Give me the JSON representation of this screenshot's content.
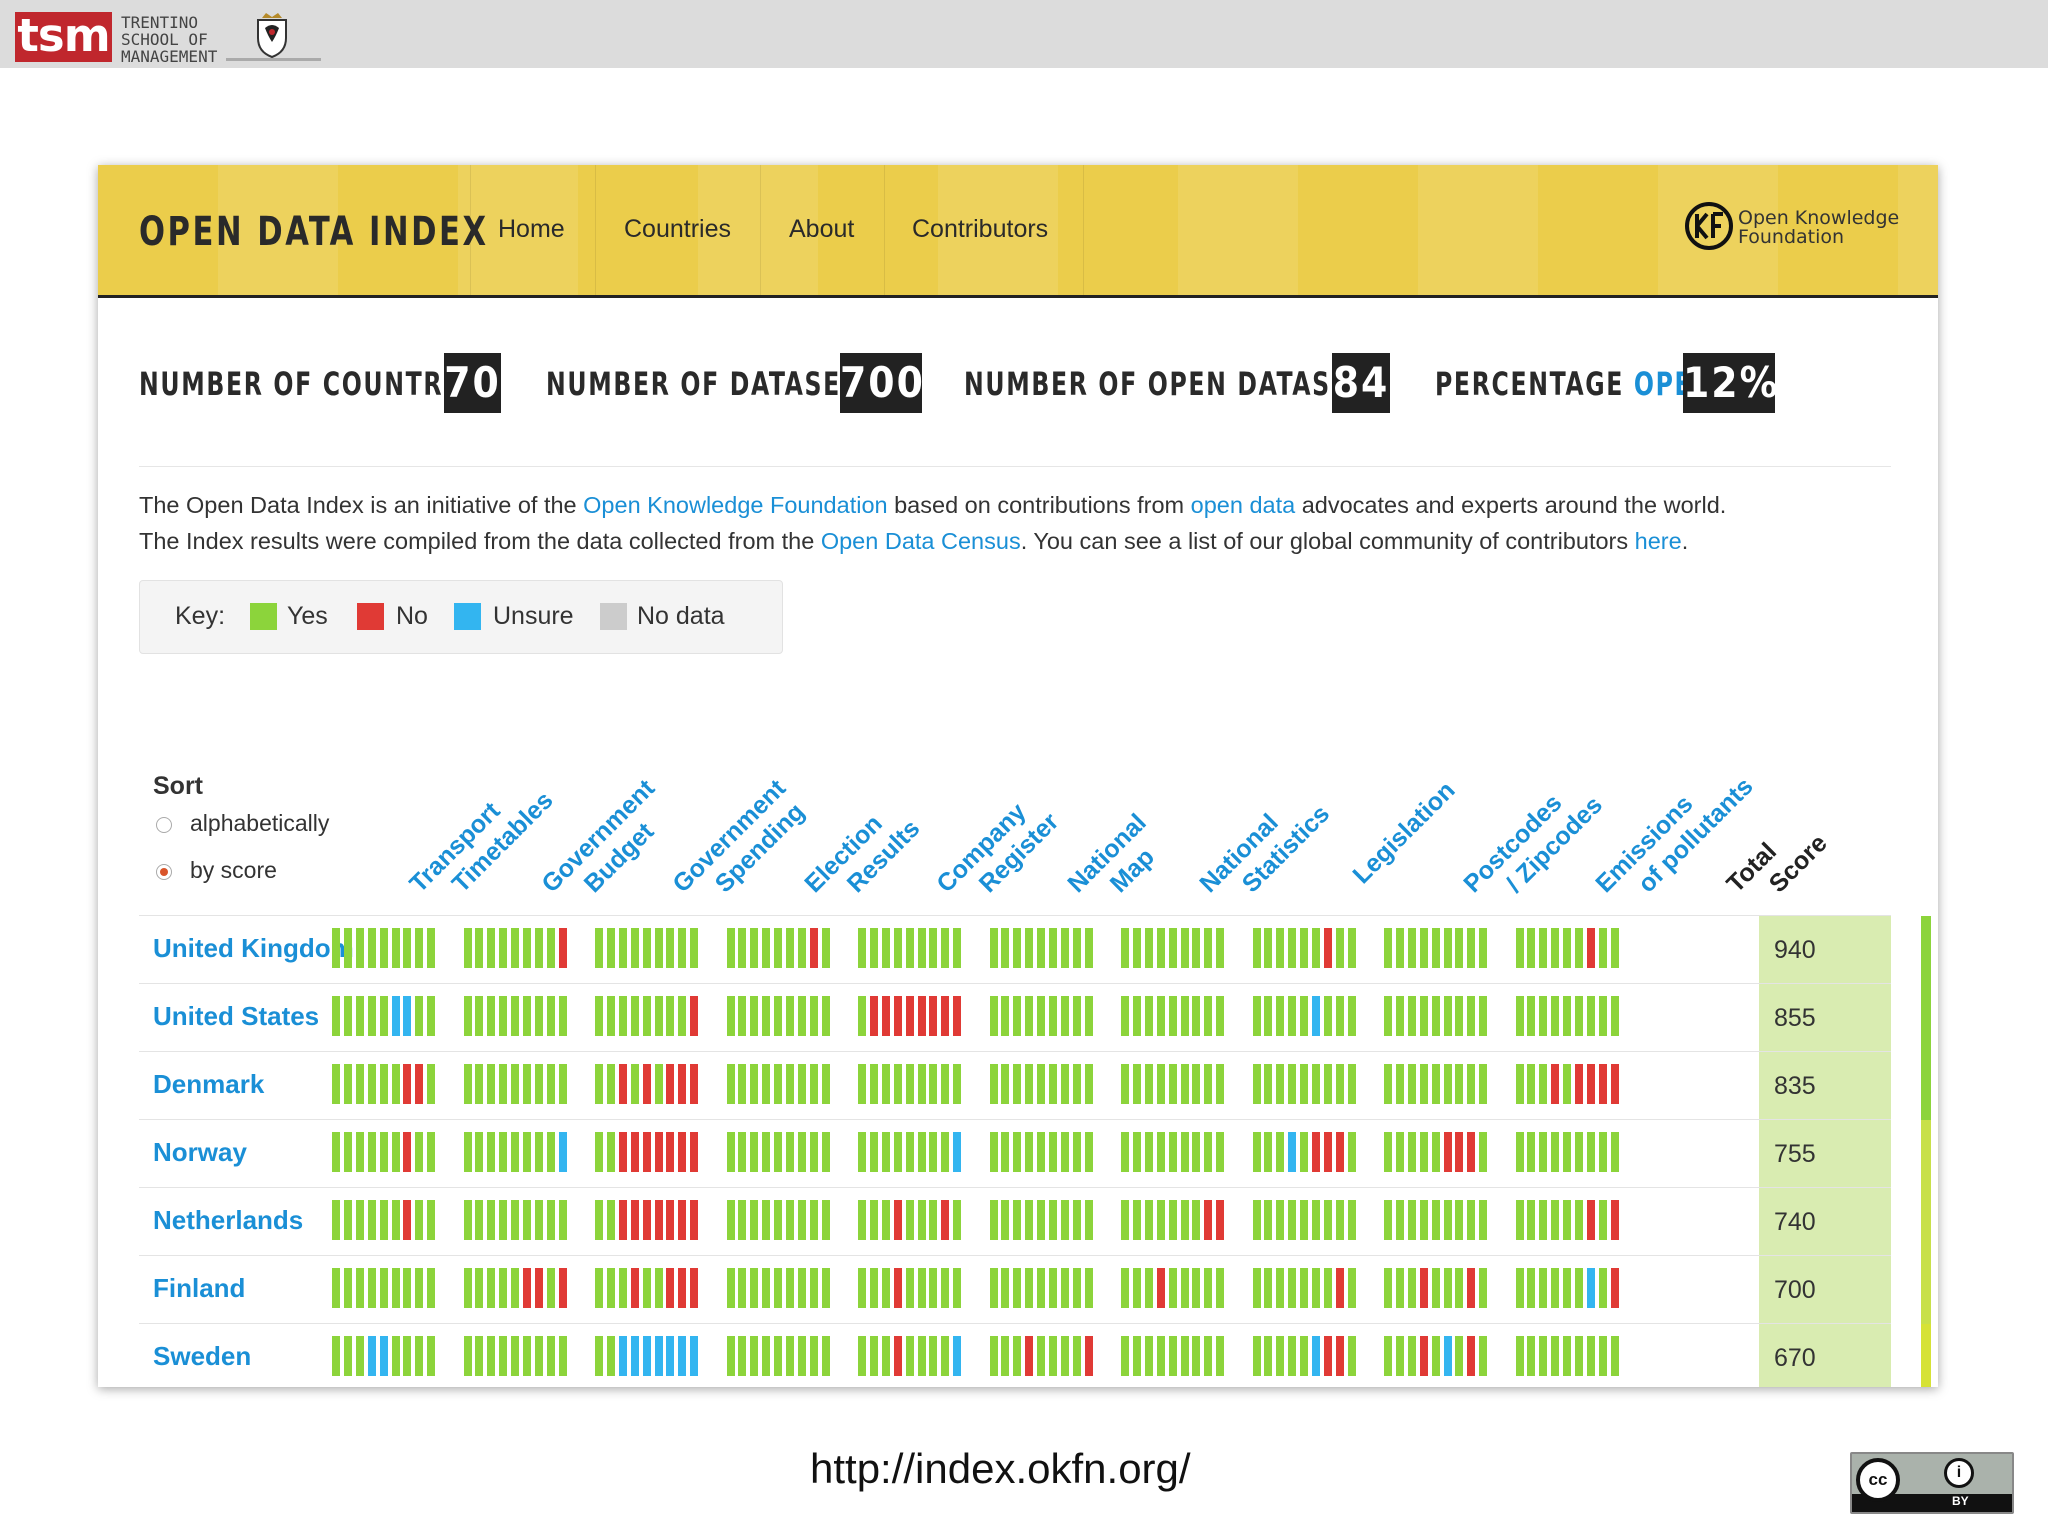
{
  "slide_header": {
    "logo_text": "tsm",
    "org_lines": [
      "TRENTINO",
      "SCHOOL OF",
      "MANAGEMENT"
    ]
  },
  "nav": {
    "brand": "OPEN DATA INDEX",
    "items": [
      "Home",
      "Countries",
      "About",
      "Contributors"
    ],
    "partner_line1": "Open Knowledge",
    "partner_line2": "Foundation"
  },
  "stats": [
    {
      "label": "NUMBER OF COUNTRIES",
      "value": "70"
    },
    {
      "label": "NUMBER OF DATASETS",
      "value": "700"
    },
    {
      "label": "NUMBER OF OPEN DATASETS",
      "value": "84"
    },
    {
      "label_prefix": "PERCENTAGE",
      "label_highlight": "OPEN",
      "value": "12%"
    }
  ],
  "intro": {
    "line1": {
      "t1": "The Open Data Index is an initiative of the ",
      "l1": "Open Knowledge Foundation",
      "t2": " based on contributions from ",
      "l2": "open data",
      "t3": " advocates and experts around the world."
    },
    "line2": {
      "t1": "The Index results were compiled from the data collected from the ",
      "l1": "Open Data Census",
      "t2": ". You can see a list of our global community of contributors ",
      "l2": "here",
      "t3": "."
    }
  },
  "key": {
    "label": "Key:",
    "items": [
      {
        "label": "Yes",
        "color": "#8cd43b"
      },
      {
        "label": "No",
        "color": "#e03a35"
      },
      {
        "label": "Unsure",
        "color": "#33b5f0"
      },
      {
        "label": "No data",
        "color": "#cccccc"
      }
    ]
  },
  "sort": {
    "title": "Sort",
    "options": [
      {
        "label": "alphabetically",
        "selected": false
      },
      {
        "label": "by score",
        "selected": true
      }
    ]
  },
  "columns": [
    {
      "line1": "Transport",
      "line2": "Timetables"
    },
    {
      "line1": "Government",
      "line2": "Budget"
    },
    {
      "line1": "Government",
      "line2": "Spending"
    },
    {
      "line1": "Election",
      "line2": "Results"
    },
    {
      "line1": "Company",
      "line2": "Register"
    },
    {
      "line1": "National",
      "line2": "Map"
    },
    {
      "line1": "National",
      "line2": "Statistics"
    },
    {
      "line1": "Legislation",
      "line2": ""
    },
    {
      "line1": "Postcodes",
      "line2": "/ Zipcodes"
    },
    {
      "line1": "Emissions",
      "line2": "of pollutants"
    },
    {
      "line1": "Total",
      "line2": "Score"
    }
  ],
  "colors": {
    "y": "#8cd43b",
    "n": "#e03a35",
    "u": "#33b5f0",
    "d": "#cccccc"
  },
  "rows": [
    {
      "country": "United Kingdom",
      "score": "940",
      "bar_color": "#8cd43b",
      "cells": [
        "yyyyyyyyy",
        "yyyyyyyyn",
        "yyyyyyyyy",
        "yyyyyyyny",
        "yyyyyyyyy",
        "yyyyyyyyy",
        "yyyyyyyyy",
        "yyyyyynyy",
        "yyyyyyyyy",
        "yyyyyynyy"
      ]
    },
    {
      "country": "United States",
      "score": "855",
      "bar_color": "#8cd43b",
      "cells": [
        "yyyyyuuyy",
        "yyyyyyyyy",
        "yyyyyyyyn",
        "yyyyyyyyy",
        "ynnnnnnnn",
        "yyyyyyyyy",
        "yyyyyyyyy",
        "yyyyyuyyy",
        "yyyyyyyyy",
        "yyyyyyyyy"
      ]
    },
    {
      "country": "Denmark",
      "score": "835",
      "bar_color": "#8cd43b",
      "cells": [
        "yyyyyynny",
        "yyyyyyyyy",
        "yynynynnn",
        "yyyyyyyyy",
        "yyyyyyyyy",
        "yyyyyyyyy",
        "yyyyyyyyy",
        "yyyyyyyyy",
        "yyyyyyyyy",
        "yyynynnnn"
      ]
    },
    {
      "country": "Norway",
      "score": "755",
      "bar_color": "#c8e04a",
      "cells": [
        "yyyyyynyy",
        "yyyyyyyyu",
        "yynnnnnnn",
        "yyyyyyyyy",
        "yyyyyyyyu",
        "yyyyyyyyy",
        "yyyyyyyyy",
        "yyyuynnny",
        "yyyyynnny",
        "yyyyyyyyy"
      ]
    },
    {
      "country": "Netherlands",
      "score": "740",
      "bar_color": "#c8e04a",
      "cells": [
        "yyyyyynyy",
        "yyyyyyyyy",
        "yynnnnnnn",
        "yyyyyyyyy",
        "yyynyyyny",
        "yyyyyyyyy",
        "yyyyyyynn",
        "yyyyyyyyy",
        "yyyyyyyyy",
        "yyyyyynyn"
      ]
    },
    {
      "country": "Finland",
      "score": "700",
      "bar_color": "#c8e04a",
      "cells": [
        "yyyyyyyyy",
        "yyyyynnyn",
        "yyynyynnn",
        "yyyyyyyyy",
        "yyynyyyyy",
        "yyyyyyyyy",
        "yyynyyyyy",
        "yyyyyyyny",
        "yyynyyyny",
        "yyyyyyuyn"
      ]
    },
    {
      "country": "Sweden",
      "score": "670",
      "bar_color": "#d6e236",
      "cells": [
        "yyyuuyyyy",
        "yyyyyyyyy",
        "yyuuuuuuu",
        "yyyyyyyyy",
        "yyynyyyyu",
        "yyynyyyyn",
        "yyyyyyyyy",
        "yyyyyunny",
        "yyynyuyny",
        "yyyyyyyyy"
      ]
    }
  ],
  "footer": {
    "url": "http://index.okfn.org/",
    "license_icon": "cc-by-icon",
    "license_text": "BY"
  }
}
